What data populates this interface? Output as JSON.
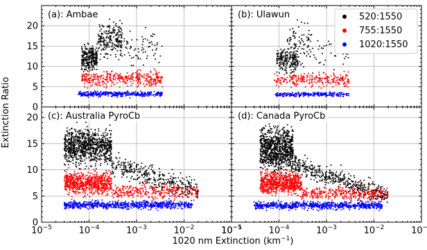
{
  "figure": {
    "xlabel": "1020 nm Extinction (km",
    "xlabel_sup": "−1",
    "xlabel_close": ")",
    "ylabel": "Extinction Ratio"
  },
  "legend": {
    "placement": "top-right of panel (b)",
    "entries": [
      {
        "label": "520:1550",
        "color": "#000000"
      },
      {
        "label": "755:1550",
        "color": "#ff0000"
      },
      {
        "label": "1020:1550",
        "color": "#0000ff"
      }
    ]
  },
  "chart_data": [
    {
      "type": "scatter",
      "panel_label": "(a): Ambae",
      "x_scale": "log",
      "xlim": [
        1e-05,
        0.1
      ],
      "xticks": [
        {
          "mant": "10",
          "exp": "−5"
        },
        {
          "mant": "10",
          "exp": "−4"
        },
        {
          "mant": "10",
          "exp": "−3"
        },
        {
          "mant": "10",
          "exp": "−2"
        },
        {
          "mant": "10",
          "exp": "−1"
        }
      ],
      "xtick_labels_shown": false,
      "ylim": [
        0,
        25
      ],
      "yticks": [
        0,
        5,
        10,
        15,
        20,
        25
      ],
      "grid": true,
      "series": [
        {
          "name": "520:1550",
          "color": "#000000",
          "clouds": [
            {
              "x_range": [
                7e-05,
                0.00015
              ],
              "y_mean": 12,
              "y_sd": 1.6,
              "n": 260
            },
            {
              "x_range": [
                0.00015,
                0.0005
              ],
              "y_mean": 16.5,
              "y_sd": 2.2,
              "n": 220
            },
            {
              "x_range": [
                0.0005,
                0.0035
              ],
              "y_mean": 14.5,
              "y_sd": 2.2,
              "n": 70
            }
          ]
        },
        {
          "name": "755:1550",
          "color": "#ff0000",
          "clouds": [
            {
              "x_range": [
                7e-05,
                0.0035
              ],
              "y_mean": 7,
              "y_sd": 0.9,
              "n": 380
            }
          ]
        },
        {
          "name": "1020:1550",
          "color": "#0000ff",
          "clouds": [
            {
              "x_range": [
                6e-05,
                0.0035
              ],
              "y_mean": 3.2,
              "y_sd": 0.3,
              "n": 380
            }
          ]
        }
      ]
    },
    {
      "type": "scatter",
      "panel_label": "(b): Ulawun",
      "x_scale": "log",
      "xlim": [
        1e-05,
        0.1
      ],
      "xticks": [
        {
          "mant": "10",
          "exp": "−5"
        },
        {
          "mant": "10",
          "exp": "−4"
        },
        {
          "mant": "10",
          "exp": "−3"
        },
        {
          "mant": "10",
          "exp": "−2"
        },
        {
          "mant": "10",
          "exp": "−1"
        }
      ],
      "xtick_labels_shown": false,
      "ylim": [
        0,
        25
      ],
      "yticks": [
        0,
        5,
        10,
        15,
        20,
        25
      ],
      "ytick_labels_shown": false,
      "grid": true,
      "series": [
        {
          "name": "520:1550",
          "color": "#000000",
          "clouds": [
            {
              "x_range": [
                9e-05,
                0.00025
              ],
              "y_mean": 11.5,
              "y_sd": 1.4,
              "n": 200
            },
            {
              "x_range": [
                0.00015,
                0.0005
              ],
              "y_mean": 16,
              "y_sd": 2.5,
              "n": 90
            },
            {
              "x_range": [
                0.0005,
                0.003
              ],
              "y_mean": 13.5,
              "y_sd": 2.0,
              "n": 40
            }
          ]
        },
        {
          "name": "755:1550",
          "color": "#ff0000",
          "clouds": [
            {
              "x_range": [
                8e-05,
                0.003
              ],
              "y_mean": 6.7,
              "y_sd": 0.8,
              "n": 250
            }
          ]
        },
        {
          "name": "1020:1550",
          "color": "#0000ff",
          "clouds": [
            {
              "x_range": [
                8e-05,
                0.003
              ],
              "y_mean": 3.1,
              "y_sd": 0.25,
              "n": 250
            }
          ]
        }
      ]
    },
    {
      "type": "scatter",
      "panel_label": "(c): Australia PyroCb",
      "x_scale": "log",
      "xlim": [
        1e-05,
        0.1
      ],
      "xticks": [
        {
          "mant": "10",
          "exp": "−5"
        },
        {
          "mant": "10",
          "exp": "−4"
        },
        {
          "mant": "10",
          "exp": "−3"
        },
        {
          "mant": "10",
          "exp": "−2"
        },
        {
          "mant": "10",
          "exp": "−1"
        }
      ],
      "ylim": [
        0,
        22
      ],
      "yticks": [
        0,
        5,
        10,
        15,
        20
      ],
      "grid": true,
      "series": [
        {
          "name": "520:1550",
          "color": "#000000",
          "clouds": [
            {
              "x_range": [
                3e-05,
                0.0003
              ],
              "y_mean": 14.5,
              "y_sd": 1.6,
              "n": 900
            },
            {
              "x_range": [
                0.0003,
                0.02
              ],
              "y_mean_start": 11,
              "y_mean_end": 6,
              "y_sd": 1.0,
              "n": 350
            }
          ]
        },
        {
          "name": "755:1550",
          "color": "#ff0000",
          "clouds": [
            {
              "x_range": [
                3e-05,
                0.0003
              ],
              "y_mean": 7.5,
              "y_sd": 1.0,
              "n": 700
            },
            {
              "x_range": [
                0.0003,
                0.02
              ],
              "y_mean": 5.8,
              "y_sd": 0.7,
              "n": 300
            }
          ]
        },
        {
          "name": "1020:1550",
          "color": "#0000ff",
          "clouds": [
            {
              "x_range": [
                3e-05,
                0.015
              ],
              "y_mean": 3.3,
              "y_sd": 0.35,
              "n": 700
            }
          ]
        }
      ]
    },
    {
      "type": "scatter",
      "panel_label": "(d): Canada PyroCb",
      "x_scale": "log",
      "xlim": [
        1e-05,
        0.1
      ],
      "xticks": [
        {
          "mant": "10",
          "exp": "−5"
        },
        {
          "mant": "10",
          "exp": "−4"
        },
        {
          "mant": "10",
          "exp": "−3"
        },
        {
          "mant": "10",
          "exp": "−2"
        },
        {
          "mant": "10",
          "exp": "−1"
        }
      ],
      "ylim": [
        0,
        22
      ],
      "yticks": [
        0,
        5,
        10,
        15,
        20
      ],
      "ytick_labels_shown": false,
      "grid": true,
      "series": [
        {
          "name": "520:1550",
          "color": "#000000",
          "clouds": [
            {
              "x_range": [
                4e-05,
                0.0002
              ],
              "y_mean": 14,
              "y_sd": 2.0,
              "n": 900
            },
            {
              "x_range": [
                0.0002,
                0.02
              ],
              "y_mean_start": 11,
              "y_mean_end": 5,
              "y_sd": 0.9,
              "n": 450
            }
          ]
        },
        {
          "name": "755:1550",
          "color": "#ff0000",
          "clouds": [
            {
              "x_range": [
                4e-05,
                0.0003
              ],
              "y_mean": 7.5,
              "y_sd": 1.0,
              "n": 700
            },
            {
              "x_range": [
                0.0003,
                0.02
              ],
              "y_mean": 5.5,
              "y_sd": 0.6,
              "n": 300
            }
          ]
        },
        {
          "name": "1020:1550",
          "color": "#0000ff",
          "clouds": [
            {
              "x_range": [
                3e-05,
                0.015
              ],
              "y_mean": 3.2,
              "y_sd": 0.35,
              "n": 700
            }
          ]
        }
      ]
    }
  ]
}
